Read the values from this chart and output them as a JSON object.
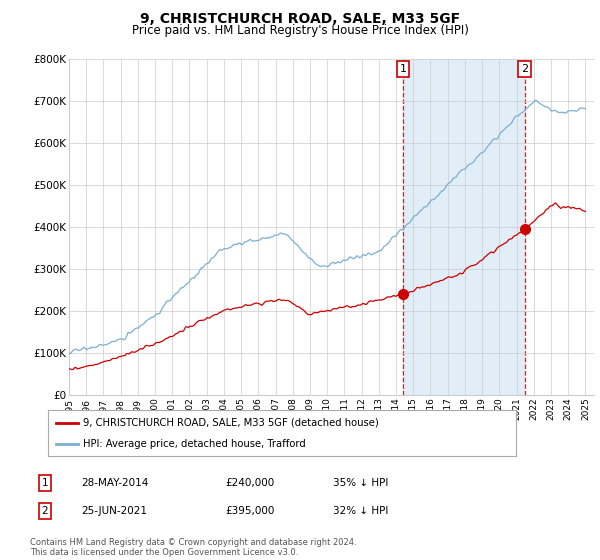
{
  "title": "9, CHRISTCHURCH ROAD, SALE, M33 5GF",
  "subtitle": "Price paid vs. HM Land Registry's House Price Index (HPI)",
  "ylim": [
    0,
    800000
  ],
  "yticks": [
    0,
    100000,
    200000,
    300000,
    400000,
    500000,
    600000,
    700000,
    800000
  ],
  "ytick_labels": [
    "£0",
    "£100K",
    "£200K",
    "£300K",
    "£400K",
    "£500K",
    "£600K",
    "£700K",
    "£800K"
  ],
  "hpi_color": "#7bafd4",
  "hpi_fill_color": "#d6e8f5",
  "price_color": "#cc0000",
  "vline_color": "#cc0000",
  "purchase1_x": 2014.41,
  "purchase1_y": 240000,
  "purchase2_x": 2021.48,
  "purchase2_y": 395000,
  "legend_entries": [
    "9, CHRISTCHURCH ROAD, SALE, M33 5GF (detached house)",
    "HPI: Average price, detached house, Trafford"
  ],
  "table_rows": [
    [
      "1",
      "28-MAY-2014",
      "£240,000",
      "35% ↓ HPI"
    ],
    [
      "2",
      "25-JUN-2021",
      "£395,000",
      "32% ↓ HPI"
    ]
  ],
  "footnote": "Contains HM Land Registry data © Crown copyright and database right 2024.\nThis data is licensed under the Open Government Licence v3.0.",
  "background_color": "#ffffff",
  "grid_color": "#cccccc",
  "xmin": 1995.0,
  "xmax": 2025.5
}
